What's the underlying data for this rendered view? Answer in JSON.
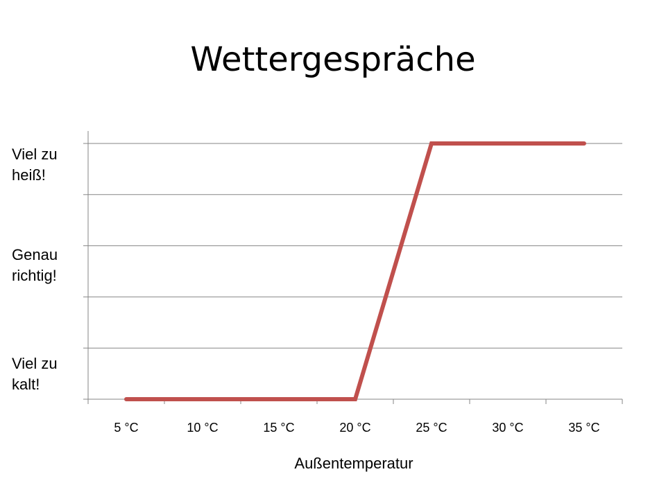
{
  "title": "Wettergespräche",
  "chart_data": {
    "type": "line",
    "title": "Wettergespräche",
    "xlabel": "Außentemperatur",
    "ylabel": "",
    "categories": [
      "5 °C",
      "10 °C",
      "15 °C",
      "20 °C",
      "25 °C",
      "30 °C",
      "35 °C"
    ],
    "x": [
      5,
      10,
      15,
      20,
      25,
      30,
      35
    ],
    "y_tick_labels": [
      {
        "value": 0,
        "lines": [
          "Viel zu",
          "kalt!"
        ]
      },
      {
        "value": 2,
        "lines": [
          "Genau",
          "richtig!"
        ]
      },
      {
        "value": 4,
        "lines": [
          "Viel zu",
          "heiß!"
        ]
      }
    ],
    "series": [
      {
        "points": [
          [
            5,
            0
          ],
          [
            20,
            0
          ],
          [
            25,
            5
          ],
          [
            35,
            5
          ]
        ],
        "color": "#c0504d"
      }
    ],
    "xlim": [
      2.5,
      37.5
    ],
    "ylim": [
      0,
      5
    ],
    "grid": true
  }
}
